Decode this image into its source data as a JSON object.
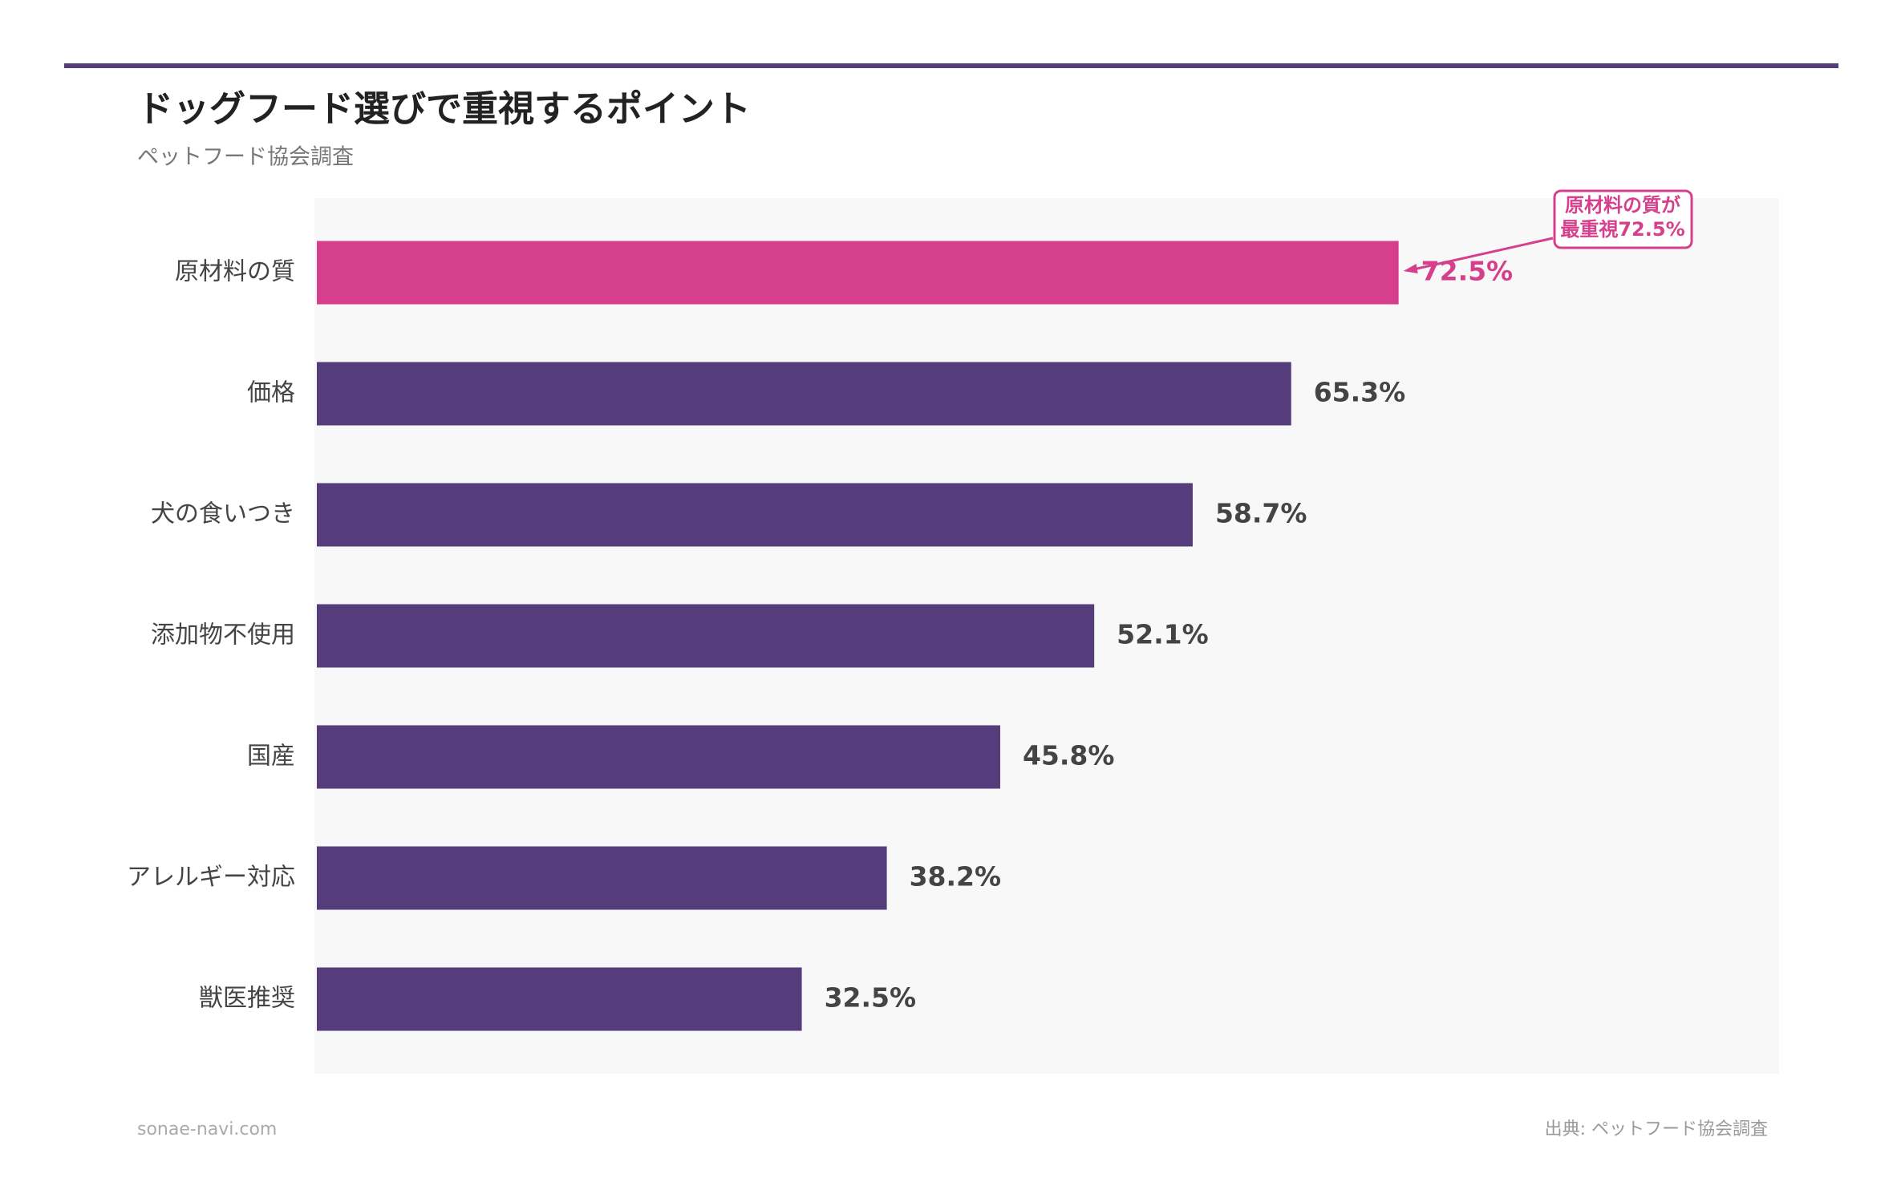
{
  "chart_data": {
    "type": "bar",
    "orientation": "horizontal",
    "title": "ドッグフード選びで重視するポイント",
    "subtitle": "ペットフード協会調査",
    "categories": [
      "原材料の質",
      "価格",
      "犬の食いつき",
      "添加物不使用",
      "国産",
      "アレルギー対応",
      "獣医推奨"
    ],
    "values": [
      72.5,
      65.3,
      58.7,
      52.1,
      45.8,
      38.2,
      32.5
    ],
    "value_labels": [
      "72.5%",
      "65.3%",
      "58.7%",
      "52.1%",
      "45.8%",
      "38.2%",
      "32.5%"
    ],
    "colors": [
      "#d63f8c",
      "#553c7a",
      "#553c7a",
      "#553c7a",
      "#553c7a",
      "#553c7a",
      "#553c7a"
    ],
    "xlim": [
      0,
      98
    ],
    "annotation": {
      "lines": [
        "原材料の質が",
        "最重視72.5%"
      ],
      "color": "#d63f8c",
      "target": 0
    },
    "footer_left": "sonae-navi.com",
    "footer_right": "出典: ペットフード協会調査"
  }
}
